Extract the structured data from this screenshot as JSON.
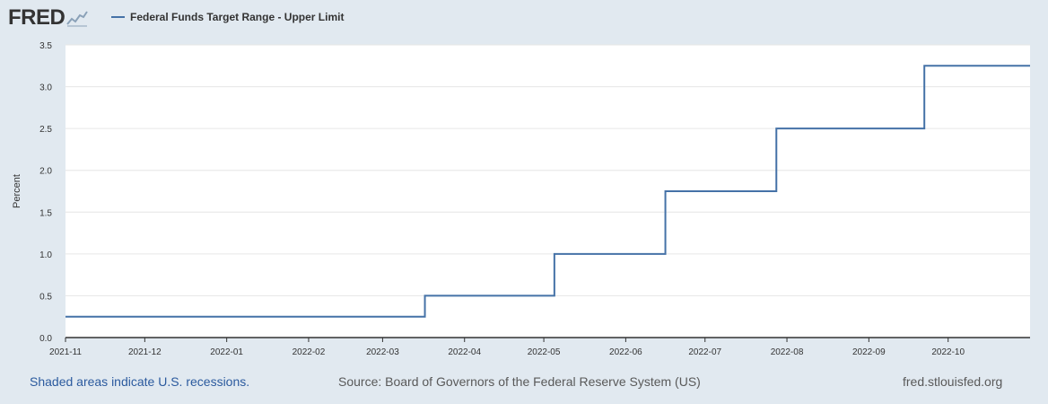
{
  "header": {
    "logo_text": "FRED",
    "logo_icon": "line-chart-icon"
  },
  "chart_data": {
    "type": "line",
    "title": "",
    "xlabel": "",
    "ylabel": "Percent",
    "ylim": [
      0,
      3.5
    ],
    "yticks": [
      "0.0",
      "0.5",
      "1.0",
      "1.5",
      "2.0",
      "2.5",
      "3.0",
      "3.5"
    ],
    "xlim": [
      "2021-11-01",
      "2022-11-01"
    ],
    "xticks": [
      "2021-11",
      "2021-12",
      "2022-01",
      "2022-02",
      "2022-03",
      "2022-04",
      "2022-05",
      "2022-06",
      "2022-07",
      "2022-08",
      "2022-09",
      "2022-10"
    ],
    "step": true,
    "grid": true,
    "legend": "top-left",
    "series": [
      {
        "name": "Federal Funds Target Range - Upper Limit",
        "color": "#4572a7",
        "x": [
          "2021-11-01",
          "2022-03-17",
          "2022-05-05",
          "2022-06-16",
          "2022-07-28",
          "2022-09-22",
          "2022-11-01"
        ],
        "values": [
          0.25,
          0.5,
          1.0,
          1.75,
          2.5,
          3.25,
          3.25
        ]
      }
    ]
  },
  "footer": {
    "note": "Shaded areas indicate U.S. recessions.",
    "source": "Source: Board of Governors of the Federal Reserve System (US)",
    "site": "fred.stlouisfed.org"
  }
}
